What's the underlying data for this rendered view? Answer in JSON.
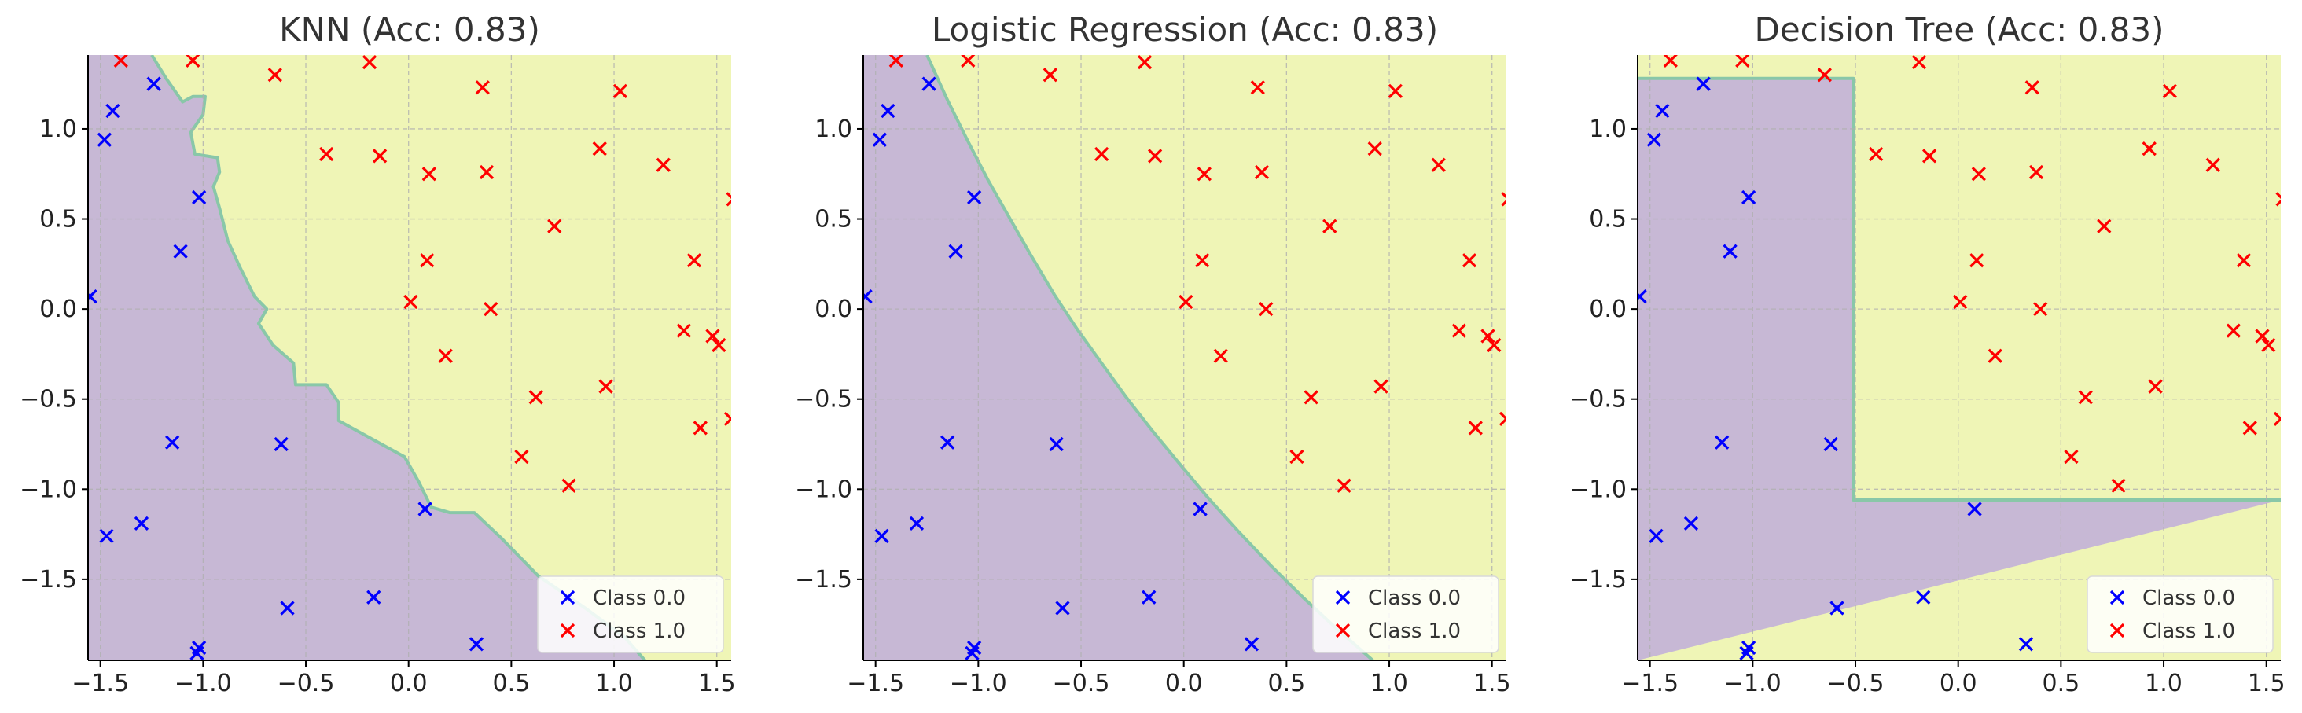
{
  "colors": {
    "class_0_region": "#c7b8d5",
    "class_1_region": "#eff5b6",
    "boundary": "#89c7a8",
    "class_0_marker": "#0000ff",
    "class_1_marker": "#ff0000"
  },
  "chart_data": [
    {
      "type": "scatter",
      "title": "KNN (Acc: 0.83)",
      "xlabel": "",
      "ylabel": "",
      "xlim": [
        -1.56,
        1.57
      ],
      "ylim": [
        -1.95,
        1.41
      ],
      "xticks": [
        -1.5,
        -1.0,
        -0.5,
        0.0,
        0.5,
        1.0,
        1.5
      ],
      "xtick_labels": [
        "−1.5",
        "−1.0",
        "−0.5",
        "0.0",
        "0.5",
        "1.0",
        "1.5"
      ],
      "yticks": [
        1.0,
        0.5,
        0.0,
        -0.5,
        -1.0,
        -1.5
      ],
      "ytick_labels": [
        "1.0",
        "0.5",
        "0.0",
        "−0.5",
        "−1.0",
        "−1.5"
      ],
      "grid": true,
      "legend_position": "lower-right",
      "legend": [
        "Class 0.0",
        "Class 1.0"
      ],
      "decision_boundary": [
        [
          -1.25,
          1.41
        ],
        [
          -1.18,
          1.28
        ],
        [
          -1.1,
          1.15
        ],
        [
          -1.05,
          1.18
        ],
        [
          -0.99,
          1.18
        ],
        [
          -1.0,
          1.08
        ],
        [
          -1.06,
          0.98
        ],
        [
          -1.04,
          0.86
        ],
        [
          -0.93,
          0.84
        ],
        [
          -0.92,
          0.76
        ],
        [
          -0.95,
          0.68
        ],
        [
          -0.92,
          0.56
        ],
        [
          -0.88,
          0.38
        ],
        [
          -0.82,
          0.23
        ],
        [
          -0.75,
          0.07
        ],
        [
          -0.69,
          0.0
        ],
        [
          -0.73,
          -0.08
        ],
        [
          -0.66,
          -0.2
        ],
        [
          -0.56,
          -0.3
        ],
        [
          -0.55,
          -0.42
        ],
        [
          -0.4,
          -0.42
        ],
        [
          -0.34,
          -0.52
        ],
        [
          -0.34,
          -0.62
        ],
        [
          -0.18,
          -0.72
        ],
        [
          -0.02,
          -0.82
        ],
        [
          0.05,
          -0.96
        ],
        [
          0.11,
          -1.1
        ],
        [
          0.2,
          -1.13
        ],
        [
          0.32,
          -1.13
        ],
        [
          0.45,
          -1.27
        ],
        [
          0.63,
          -1.48
        ],
        [
          0.86,
          -1.66
        ],
        [
          1.05,
          -1.82
        ],
        [
          1.15,
          -1.95
        ]
      ],
      "series": [
        {
          "name": "Class 0.0",
          "points": [
            [
              -1.55,
              0.07
            ],
            [
              -1.48,
              0.94
            ],
            [
              -1.44,
              1.1
            ],
            [
              -1.24,
              1.25
            ],
            [
              -1.02,
              0.62
            ],
            [
              -1.11,
              0.32
            ],
            [
              -1.47,
              -1.26
            ],
            [
              -1.3,
              -1.19
            ],
            [
              -1.15,
              -0.74
            ],
            [
              -0.62,
              -0.75
            ],
            [
              -0.59,
              -1.66
            ],
            [
              -0.17,
              -1.6
            ],
            [
              -1.02,
              -1.88
            ],
            [
              -1.03,
              -1.91
            ],
            [
              0.08,
              -1.11
            ],
            [
              0.33,
              -1.86
            ]
          ]
        },
        {
          "name": "Class 1.0",
          "points": [
            [
              -1.4,
              1.38
            ],
            [
              -1.05,
              1.38
            ],
            [
              -0.65,
              1.3
            ],
            [
              -0.19,
              1.37
            ],
            [
              -0.4,
              0.86
            ],
            [
              -0.14,
              0.85
            ],
            [
              0.1,
              0.75
            ],
            [
              0.36,
              1.23
            ],
            [
              0.38,
              0.76
            ],
            [
              1.03,
              1.21
            ],
            [
              1.24,
              0.8
            ],
            [
              0.93,
              0.89
            ],
            [
              0.71,
              0.46
            ],
            [
              0.09,
              0.27
            ],
            [
              0.01,
              0.04
            ],
            [
              0.4,
              0.0
            ],
            [
              0.18,
              -0.26
            ],
            [
              0.62,
              -0.49
            ],
            [
              0.55,
              -0.82
            ],
            [
              0.78,
              -0.98
            ],
            [
              0.96,
              -0.43
            ],
            [
              1.34,
              -0.12
            ],
            [
              1.39,
              0.27
            ],
            [
              1.48,
              -0.15
            ],
            [
              1.51,
              -0.2
            ],
            [
              1.42,
              -0.66
            ],
            [
              1.57,
              -0.61
            ],
            [
              1.58,
              0.61
            ]
          ]
        }
      ]
    },
    {
      "type": "scatter",
      "title": "Logistic Regression (Acc: 0.83)",
      "xlabel": "",
      "ylabel": "",
      "xlim": [
        -1.56,
        1.57
      ],
      "ylim": [
        -1.95,
        1.41
      ],
      "xticks": [
        -1.5,
        -1.0,
        -0.5,
        0.0,
        0.5,
        1.0,
        1.5
      ],
      "xtick_labels": [
        "−1.5",
        "−1.0",
        "−0.5",
        "0.0",
        "0.5",
        "1.0",
        "1.5"
      ],
      "yticks": [
        1.0,
        0.5,
        0.0,
        -0.5,
        -1.0,
        -1.5
      ],
      "ytick_labels": [
        "1.0",
        "0.5",
        "0.0",
        "−0.5",
        "−1.0",
        "−1.5"
      ],
      "grid": true,
      "legend_position": "lower-right",
      "legend": [
        "Class 0.0",
        "Class 1.0"
      ],
      "decision_boundary": [
        [
          -1.25,
          1.41
        ],
        [
          -1.15,
          1.16
        ],
        [
          -1.05,
          0.93
        ],
        [
          -0.95,
          0.71
        ],
        [
          -0.85,
          0.51
        ],
        [
          -0.75,
          0.31
        ],
        [
          -0.63,
          0.08
        ],
        [
          -0.52,
          -0.11
        ],
        [
          -0.4,
          -0.3
        ],
        [
          -0.28,
          -0.49
        ],
        [
          -0.15,
          -0.68
        ],
        [
          -0.02,
          -0.86
        ],
        [
          0.12,
          -1.05
        ],
        [
          0.27,
          -1.24
        ],
        [
          0.42,
          -1.42
        ],
        [
          0.58,
          -1.6
        ],
        [
          0.74,
          -1.77
        ],
        [
          0.92,
          -1.95
        ]
      ],
      "series": [
        {
          "name": "Class 0.0",
          "points": [
            [
              -1.55,
              0.07
            ],
            [
              -1.48,
              0.94
            ],
            [
              -1.44,
              1.1
            ],
            [
              -1.24,
              1.25
            ],
            [
              -1.02,
              0.62
            ],
            [
              -1.11,
              0.32
            ],
            [
              -1.47,
              -1.26
            ],
            [
              -1.3,
              -1.19
            ],
            [
              -1.15,
              -0.74
            ],
            [
              -0.62,
              -0.75
            ],
            [
              -0.59,
              -1.66
            ],
            [
              -0.17,
              -1.6
            ],
            [
              -1.02,
              -1.88
            ],
            [
              -1.03,
              -1.91
            ],
            [
              0.08,
              -1.11
            ],
            [
              0.33,
              -1.86
            ]
          ]
        },
        {
          "name": "Class 1.0",
          "points": [
            [
              -1.4,
              1.38
            ],
            [
              -1.05,
              1.38
            ],
            [
              -0.65,
              1.3
            ],
            [
              -0.19,
              1.37
            ],
            [
              -0.4,
              0.86
            ],
            [
              -0.14,
              0.85
            ],
            [
              0.1,
              0.75
            ],
            [
              0.36,
              1.23
            ],
            [
              0.38,
              0.76
            ],
            [
              1.03,
              1.21
            ],
            [
              1.24,
              0.8
            ],
            [
              0.93,
              0.89
            ],
            [
              0.71,
              0.46
            ],
            [
              0.09,
              0.27
            ],
            [
              0.01,
              0.04
            ],
            [
              0.4,
              0.0
            ],
            [
              0.18,
              -0.26
            ],
            [
              0.62,
              -0.49
            ],
            [
              0.55,
              -0.82
            ],
            [
              0.78,
              -0.98
            ],
            [
              0.96,
              -0.43
            ],
            [
              1.34,
              -0.12
            ],
            [
              1.39,
              0.27
            ],
            [
              1.48,
              -0.15
            ],
            [
              1.51,
              -0.2
            ],
            [
              1.42,
              -0.66
            ],
            [
              1.57,
              -0.61
            ],
            [
              1.58,
              0.61
            ]
          ]
        }
      ]
    },
    {
      "type": "scatter",
      "title": "Decision Tree (Acc: 0.83)",
      "xlabel": "",
      "ylabel": "",
      "xlim": [
        -1.56,
        1.57
      ],
      "ylim": [
        -1.95,
        1.41
      ],
      "xticks": [
        -1.5,
        -1.0,
        -0.5,
        0.0,
        0.5,
        1.0,
        1.5
      ],
      "xtick_labels": [
        "−1.5",
        "−1.0",
        "−0.5",
        "0.0",
        "0.5",
        "1.0",
        "1.5"
      ],
      "yticks": [
        1.0,
        0.5,
        0.0,
        -0.5,
        -1.0,
        -1.5
      ],
      "ytick_labels": [
        "1.0",
        "0.5",
        "0.0",
        "−0.5",
        "−1.0",
        "−1.5"
      ],
      "grid": true,
      "legend_position": "lower-right",
      "legend": [
        "Class 0.0",
        "Class 1.0"
      ],
      "decision_boundary": [
        [
          -1.56,
          1.28
        ],
        [
          -0.51,
          1.28
        ],
        [
          -0.51,
          -1.06
        ],
        [
          1.57,
          -1.06
        ]
      ],
      "series": [
        {
          "name": "Class 0.0",
          "points": [
            [
              -1.55,
              0.07
            ],
            [
              -1.48,
              0.94
            ],
            [
              -1.44,
              1.1
            ],
            [
              -1.24,
              1.25
            ],
            [
              -1.02,
              0.62
            ],
            [
              -1.11,
              0.32
            ],
            [
              -1.47,
              -1.26
            ],
            [
              -1.3,
              -1.19
            ],
            [
              -1.15,
              -0.74
            ],
            [
              -0.62,
              -0.75
            ],
            [
              -0.59,
              -1.66
            ],
            [
              -0.17,
              -1.6
            ],
            [
              -1.02,
              -1.88
            ],
            [
              -1.03,
              -1.91
            ],
            [
              0.08,
              -1.11
            ],
            [
              0.33,
              -1.86
            ]
          ]
        },
        {
          "name": "Class 1.0",
          "points": [
            [
              -1.4,
              1.38
            ],
            [
              -1.05,
              1.38
            ],
            [
              -0.65,
              1.3
            ],
            [
              -0.19,
              1.37
            ],
            [
              -0.4,
              0.86
            ],
            [
              -0.14,
              0.85
            ],
            [
              0.1,
              0.75
            ],
            [
              0.36,
              1.23
            ],
            [
              0.38,
              0.76
            ],
            [
              1.03,
              1.21
            ],
            [
              1.24,
              0.8
            ],
            [
              0.93,
              0.89
            ],
            [
              0.71,
              0.46
            ],
            [
              0.09,
              0.27
            ],
            [
              0.01,
              0.04
            ],
            [
              0.4,
              0.0
            ],
            [
              0.18,
              -0.26
            ],
            [
              0.62,
              -0.49
            ],
            [
              0.55,
              -0.82
            ],
            [
              0.78,
              -0.98
            ],
            [
              0.96,
              -0.43
            ],
            [
              1.34,
              -0.12
            ],
            [
              1.39,
              0.27
            ],
            [
              1.48,
              -0.15
            ],
            [
              1.51,
              -0.2
            ],
            [
              1.42,
              -0.66
            ],
            [
              1.57,
              -0.61
            ],
            [
              1.58,
              0.61
            ]
          ]
        }
      ]
    }
  ]
}
